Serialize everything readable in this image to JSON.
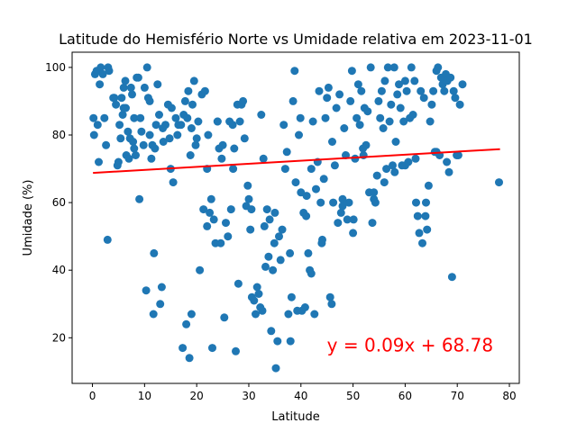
{
  "chart_data": {
    "type": "scatter",
    "title": "Latitude do Hemisfério Norte vs Umidade relativa em 2023-11-01",
    "xlabel": "Latitude",
    "ylabel": "Umidade (%)",
    "xlim": [
      -3.9,
      81.9
    ],
    "ylim": [
      6.5,
      104.5
    ],
    "x_ticks": [
      0,
      10,
      20,
      30,
      40,
      50,
      60,
      70,
      80
    ],
    "y_ticks": [
      20,
      40,
      60,
      80,
      100
    ],
    "grid": false,
    "marker_color": "#1f77b4",
    "regression": {
      "slope": 0.09,
      "intercept": 68.78,
      "x_range": [
        0.1,
        78.2
      ],
      "color": "#ff0000",
      "label": "y = 0.09x + 68.78",
      "label_position": [
        45,
        16
      ]
    },
    "points": [
      [
        0.2,
        85
      ],
      [
        0.3,
        80
      ],
      [
        0.5,
        98
      ],
      [
        0.8,
        99
      ],
      [
        1.0,
        83
      ],
      [
        1.2,
        72
      ],
      [
        1.4,
        95
      ],
      [
        1.6,
        100
      ],
      [
        2.0,
        98
      ],
      [
        2.3,
        85
      ],
      [
        2.6,
        77
      ],
      [
        2.9,
        49
      ],
      [
        3.0,
        100
      ],
      [
        4.2,
        91
      ],
      [
        4.5,
        89
      ],
      [
        4.8,
        71
      ],
      [
        5.0,
        72
      ],
      [
        5.2,
        83
      ],
      [
        5.4,
        79
      ],
      [
        5.6,
        91
      ],
      [
        5.8,
        86
      ],
      [
        6.0,
        94
      ],
      [
        6.3,
        96
      ],
      [
        6.4,
        88
      ],
      [
        6.5,
        74
      ],
      [
        6.8,
        81
      ],
      [
        7.0,
        73
      ],
      [
        7.2,
        79
      ],
      [
        7.4,
        94
      ],
      [
        7.6,
        92
      ],
      [
        7.8,
        78
      ],
      [
        8.0,
        85
      ],
      [
        8.3,
        74
      ],
      [
        8.5,
        97
      ],
      [
        8.8,
        97
      ],
      [
        9.0,
        61
      ],
      [
        9.2,
        85
      ],
      [
        9.4,
        81
      ],
      [
        9.8,
        77
      ],
      [
        10.0,
        94
      ],
      [
        10.3,
        34
      ],
      [
        10.5,
        100
      ],
      [
        10.7,
        91
      ],
      [
        11.0,
        80
      ],
      [
        11.3,
        73
      ],
      [
        11.5,
        77
      ],
      [
        11.7,
        27
      ],
      [
        11.8,
        45
      ],
      [
        12.0,
        76
      ],
      [
        12.2,
        83
      ],
      [
        12.5,
        95
      ],
      [
        12.8,
        86
      ],
      [
        13.0,
        30
      ],
      [
        13.3,
        35
      ],
      [
        13.6,
        78
      ],
      [
        14.0,
        83
      ],
      [
        14.5,
        89
      ],
      [
        14.8,
        79
      ],
      [
        15.0,
        70
      ],
      [
        15.2,
        88
      ],
      [
        15.5,
        66
      ],
      [
        16.0,
        85
      ],
      [
        16.3,
        80
      ],
      [
        17.0,
        83
      ],
      [
        17.3,
        17
      ],
      [
        17.5,
        86
      ],
      [
        17.8,
        90
      ],
      [
        18.0,
        24
      ],
      [
        18.2,
        85
      ],
      [
        18.4,
        93
      ],
      [
        18.6,
        14
      ],
      [
        18.8,
        74
      ],
      [
        19.0,
        27
      ],
      [
        19.2,
        89
      ],
      [
        19.5,
        96
      ],
      [
        19.8,
        77
      ],
      [
        20.0,
        79
      ],
      [
        20.3,
        84
      ],
      [
        20.6,
        40
      ],
      [
        21.0,
        92
      ],
      [
        21.3,
        58
      ],
      [
        21.6,
        93
      ],
      [
        22.0,
        70
      ],
      [
        22.2,
        80
      ],
      [
        22.5,
        57
      ],
      [
        22.8,
        61
      ],
      [
        23.0,
        17
      ],
      [
        23.3,
        55
      ],
      [
        23.6,
        48
      ],
      [
        24.0,
        84
      ],
      [
        24.3,
        76
      ],
      [
        24.6,
        48
      ],
      [
        24.8,
        73
      ],
      [
        25.0,
        77
      ],
      [
        25.3,
        26
      ],
      [
        25.6,
        54
      ],
      [
        26.0,
        50
      ],
      [
        26.3,
        84
      ],
      [
        26.6,
        58
      ],
      [
        26.9,
        83
      ],
      [
        27.2,
        76
      ],
      [
        27.5,
        16
      ],
      [
        27.8,
        89
      ],
      [
        28.0,
        36
      ],
      [
        28.3,
        84
      ],
      [
        28.6,
        89
      ],
      [
        28.9,
        90
      ],
      [
        29.2,
        79
      ],
      [
        29.5,
        59
      ],
      [
        29.8,
        65
      ],
      [
        30.0,
        61
      ],
      [
        30.3,
        52
      ],
      [
        30.6,
        32
      ],
      [
        31.0,
        31
      ],
      [
        31.3,
        27
      ],
      [
        31.6,
        35
      ],
      [
        31.9,
        33
      ],
      [
        32.2,
        29
      ],
      [
        32.4,
        86
      ],
      [
        32.6,
        28
      ],
      [
        32.8,
        73
      ],
      [
        33.0,
        53
      ],
      [
        33.2,
        41
      ],
      [
        33.5,
        58
      ],
      [
        33.8,
        44
      ],
      [
        34.0,
        55
      ],
      [
        34.3,
        22
      ],
      [
        34.6,
        40
      ],
      [
        34.9,
        48
      ],
      [
        35.2,
        11
      ],
      [
        35.5,
        19
      ],
      [
        35.8,
        50
      ],
      [
        36.1,
        43
      ],
      [
        36.4,
        52
      ],
      [
        36.7,
        83
      ],
      [
        37.0,
        70
      ],
      [
        37.3,
        75
      ],
      [
        37.6,
        27
      ],
      [
        37.9,
        45
      ],
      [
        38.2,
        32
      ],
      [
        38.5,
        90
      ],
      [
        38.8,
        99
      ],
      [
        39.0,
        66
      ],
      [
        39.3,
        28
      ],
      [
        39.6,
        80
      ],
      [
        39.9,
        85
      ],
      [
        40.2,
        28
      ],
      [
        40.5,
        57
      ],
      [
        40.8,
        29
      ],
      [
        41.1,
        62
      ],
      [
        41.4,
        45
      ],
      [
        41.7,
        40
      ],
      [
        42.0,
        39
      ],
      [
        42.3,
        84
      ],
      [
        42.6,
        27
      ],
      [
        42.9,
        64
      ],
      [
        43.2,
        72
      ],
      [
        43.5,
        93
      ],
      [
        43.8,
        60
      ],
      [
        44.1,
        49
      ],
      [
        44.4,
        67
      ],
      [
        44.7,
        85
      ],
      [
        45.0,
        91
      ],
      [
        45.3,
        94
      ],
      [
        45.6,
        32
      ],
      [
        45.9,
        30
      ],
      [
        46.2,
        60
      ],
      [
        46.5,
        71
      ],
      [
        46.8,
        88
      ],
      [
        47.1,
        54
      ],
      [
        47.4,
        92
      ],
      [
        47.7,
        57
      ],
      [
        48.0,
        59
      ],
      [
        48.3,
        82
      ],
      [
        48.6,
        74
      ],
      [
        48.9,
        55
      ],
      [
        49.2,
        60
      ],
      [
        49.5,
        90
      ],
      [
        49.8,
        99
      ],
      [
        50.1,
        55
      ],
      [
        50.4,
        73
      ],
      [
        50.7,
        85
      ],
      [
        51.0,
        95
      ],
      [
        51.3,
        83
      ],
      [
        51.6,
        93
      ],
      [
        51.9,
        76
      ],
      [
        52.2,
        88
      ],
      [
        52.5,
        77
      ],
      [
        52.8,
        87
      ],
      [
        53.1,
        63
      ],
      [
        53.4,
        100
      ],
      [
        53.7,
        54
      ],
      [
        54.0,
        61
      ],
      [
        54.3,
        60
      ],
      [
        54.6,
        68
      ],
      [
        54.9,
        90
      ],
      [
        55.2,
        85
      ],
      [
        55.5,
        93
      ],
      [
        55.8,
        82
      ],
      [
        56.1,
        96
      ],
      [
        56.4,
        70
      ],
      [
        56.7,
        100
      ],
      [
        57.0,
        84
      ],
      [
        57.3,
        89
      ],
      [
        57.6,
        71
      ],
      [
        57.9,
        100
      ],
      [
        58.2,
        78
      ],
      [
        58.5,
        92
      ],
      [
        58.8,
        95
      ],
      [
        59.1,
        88
      ],
      [
        59.4,
        71
      ],
      [
        59.7,
        84
      ],
      [
        60.0,
        96
      ],
      [
        60.3,
        93
      ],
      [
        60.6,
        72
      ],
      [
        60.9,
        85
      ],
      [
        61.2,
        100
      ],
      [
        61.5,
        86
      ],
      [
        61.8,
        96
      ],
      [
        62.1,
        60
      ],
      [
        62.4,
        56
      ],
      [
        62.7,
        51
      ],
      [
        63.0,
        93
      ],
      [
        63.3,
        48
      ],
      [
        63.6,
        91
      ],
      [
        63.9,
        56
      ],
      [
        64.2,
        52
      ],
      [
        64.5,
        65
      ],
      [
        64.8,
        84
      ],
      [
        65.1,
        89
      ],
      [
        65.4,
        93
      ],
      [
        65.7,
        75
      ],
      [
        66.0,
        99
      ],
      [
        66.3,
        100
      ],
      [
        66.6,
        74
      ],
      [
        66.9,
        97
      ],
      [
        67.2,
        95
      ],
      [
        67.5,
        93
      ],
      [
        67.8,
        98
      ],
      [
        68.1,
        96
      ],
      [
        68.4,
        69
      ],
      [
        68.7,
        97
      ],
      [
        69.0,
        38
      ],
      [
        69.3,
        93
      ],
      [
        69.6,
        91
      ],
      [
        69.9,
        74
      ],
      [
        70.2,
        74
      ],
      [
        70.5,
        89
      ],
      [
        71.0,
        95
      ],
      [
        78.0,
        66
      ],
      [
        41.0,
        56
      ],
      [
        44.0,
        48
      ],
      [
        38.0,
        19
      ],
      [
        35.0,
        57
      ],
      [
        30.5,
        58
      ],
      [
        27.0,
        70
      ],
      [
        24.0,
        84
      ],
      [
        22.0,
        53
      ],
      [
        19.0,
        82
      ],
      [
        16.5,
        83
      ],
      [
        13.5,
        82
      ],
      [
        11.0,
        90
      ],
      [
        8.0,
        76
      ],
      [
        6.0,
        88
      ],
      [
        4.0,
        91
      ],
      [
        3.2,
        99
      ],
      [
        46.0,
        78
      ],
      [
        48.0,
        61
      ],
      [
        50.0,
        51
      ],
      [
        52.0,
        74
      ],
      [
        54.0,
        63
      ],
      [
        56.0,
        66
      ],
      [
        58.0,
        69
      ],
      [
        60.0,
        71
      ],
      [
        62.0,
        73
      ],
      [
        64.0,
        60
      ],
      [
        66.0,
        75
      ],
      [
        68.0,
        72
      ],
      [
        40.0,
        63
      ],
      [
        42.0,
        70
      ]
    ]
  }
}
